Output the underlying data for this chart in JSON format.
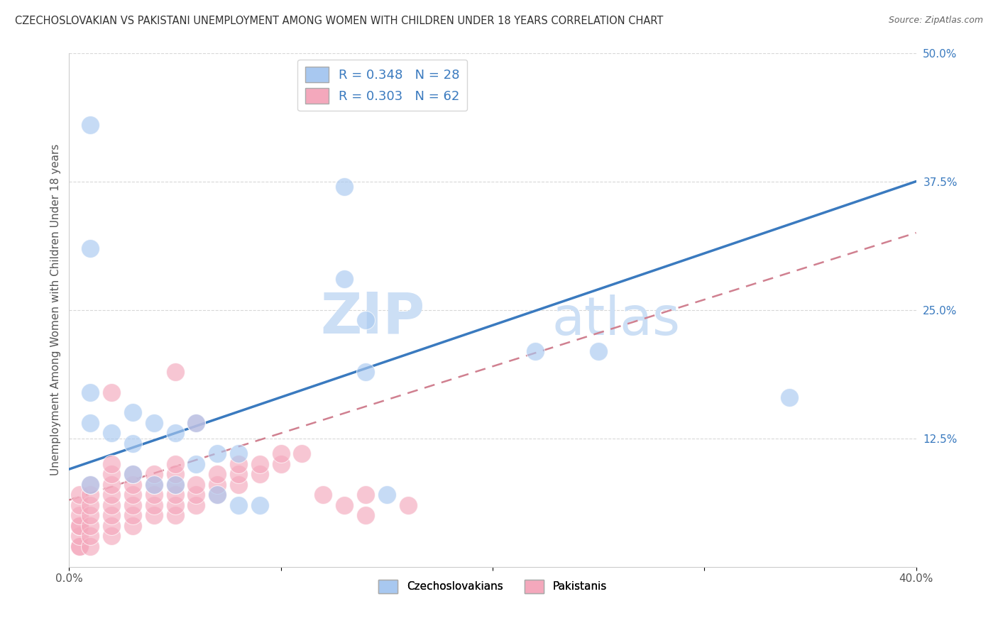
{
  "title": "CZECHOSLOVAKIAN VS PAKISTANI UNEMPLOYMENT AMONG WOMEN WITH CHILDREN UNDER 18 YEARS CORRELATION CHART",
  "source": "Source: ZipAtlas.com",
  "ylabel": "Unemployment Among Women with Children Under 18 years",
  "legend_blue_r": "R = 0.348",
  "legend_blue_n": "N = 28",
  "legend_pink_r": "R = 0.303",
  "legend_pink_n": "N = 62",
  "legend_blue_label": "Czechoslovakians",
  "legend_pink_label": "Pakistanis",
  "xlim": [
    0.0,
    0.4
  ],
  "ylim": [
    0.0,
    0.5
  ],
  "ytick_right": [
    0.125,
    0.25,
    0.375,
    0.5
  ],
  "ytick_right_labels": [
    "12.5%",
    "25.0%",
    "37.5%",
    "50.0%"
  ],
  "blue_color": "#a8c8f0",
  "pink_color": "#f4a8bc",
  "blue_line_color": "#3a7abf",
  "pink_line_color": "#d08090",
  "watermark_color": "#ccdff5",
  "background_color": "#ffffff",
  "grid_color": "#d8d8d8",
  "blue_line_x0": 0.0,
  "blue_line_y0": 0.095,
  "blue_line_x1": 0.4,
  "blue_line_y1": 0.375,
  "pink_line_x0": 0.0,
  "pink_line_y0": 0.065,
  "pink_line_x1": 0.4,
  "pink_line_y1": 0.325,
  "blue_points_x": [
    0.01,
    0.13,
    0.25,
    0.01,
    0.13,
    0.14,
    0.14,
    0.22,
    0.01,
    0.01,
    0.02,
    0.03,
    0.03,
    0.04,
    0.05,
    0.06,
    0.06,
    0.07,
    0.08,
    0.34,
    0.01,
    0.03,
    0.04,
    0.05,
    0.07,
    0.08,
    0.09,
    0.15
  ],
  "blue_points_y": [
    0.43,
    0.37,
    0.21,
    0.31,
    0.28,
    0.24,
    0.19,
    0.21,
    0.17,
    0.14,
    0.13,
    0.15,
    0.12,
    0.14,
    0.13,
    0.14,
    0.1,
    0.11,
    0.11,
    0.165,
    0.08,
    0.09,
    0.08,
    0.08,
    0.07,
    0.06,
    0.06,
    0.07
  ],
  "pink_points_x": [
    0.005,
    0.005,
    0.005,
    0.005,
    0.005,
    0.005,
    0.005,
    0.005,
    0.01,
    0.01,
    0.01,
    0.01,
    0.01,
    0.01,
    0.01,
    0.02,
    0.02,
    0.02,
    0.02,
    0.02,
    0.02,
    0.02,
    0.02,
    0.02,
    0.03,
    0.03,
    0.03,
    0.03,
    0.03,
    0.03,
    0.04,
    0.04,
    0.04,
    0.04,
    0.04,
    0.05,
    0.05,
    0.05,
    0.05,
    0.05,
    0.05,
    0.05,
    0.06,
    0.06,
    0.06,
    0.06,
    0.07,
    0.07,
    0.07,
    0.08,
    0.08,
    0.08,
    0.09,
    0.09,
    0.1,
    0.1,
    0.11,
    0.12,
    0.13,
    0.14,
    0.14,
    0.16
  ],
  "pink_points_y": [
    0.02,
    0.02,
    0.03,
    0.04,
    0.04,
    0.05,
    0.06,
    0.07,
    0.02,
    0.03,
    0.04,
    0.05,
    0.06,
    0.07,
    0.08,
    0.03,
    0.04,
    0.05,
    0.06,
    0.07,
    0.08,
    0.09,
    0.1,
    0.17,
    0.04,
    0.05,
    0.06,
    0.07,
    0.08,
    0.09,
    0.05,
    0.06,
    0.07,
    0.08,
    0.09,
    0.05,
    0.06,
    0.07,
    0.08,
    0.09,
    0.1,
    0.19,
    0.06,
    0.07,
    0.08,
    0.14,
    0.07,
    0.08,
    0.09,
    0.08,
    0.09,
    0.1,
    0.09,
    0.1,
    0.1,
    0.11,
    0.11,
    0.07,
    0.06,
    0.07,
    0.05,
    0.06
  ]
}
